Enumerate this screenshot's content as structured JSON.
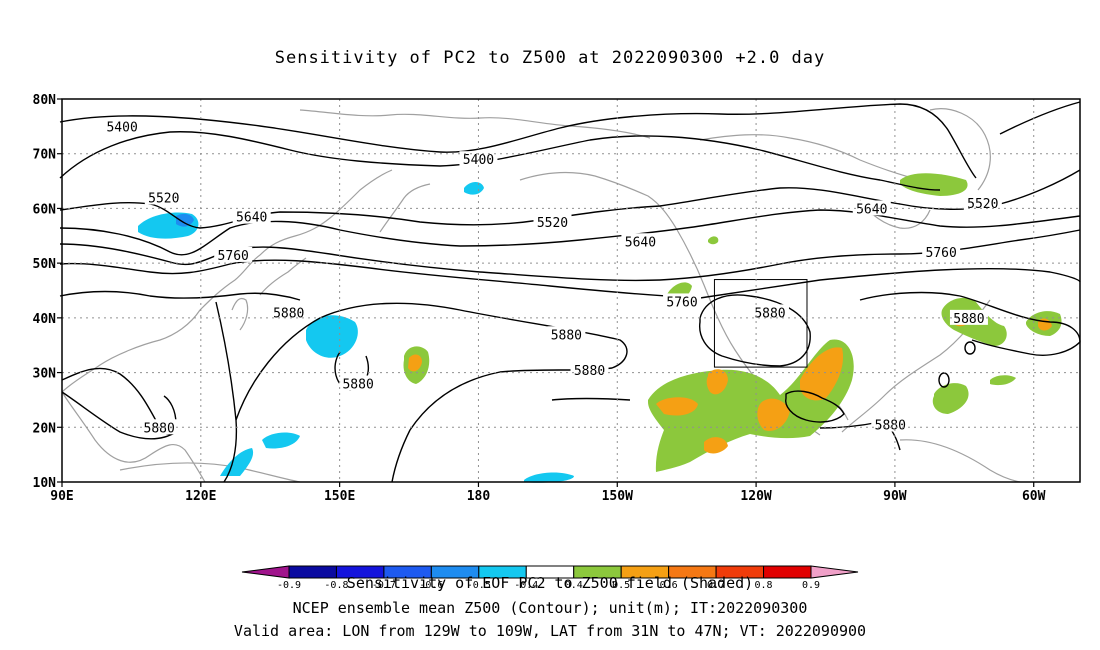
{
  "title": "Sensitivity of PC2 to Z500 at 2022090300 +2.0 day",
  "map": {
    "lat_labels": [
      "80N",
      "70N",
      "60N",
      "50N",
      "40N",
      "30N",
      "20N",
      "10N"
    ],
    "lat_values": [
      80,
      70,
      60,
      50,
      40,
      30,
      20,
      10
    ],
    "lon_labels": [
      "90E",
      "120E",
      "150E",
      "180",
      "150W",
      "120W",
      "90W",
      "60W"
    ],
    "lon_values": [
      90,
      120,
      150,
      180,
      210,
      240,
      270,
      300
    ],
    "extent": {
      "lon_min": 90,
      "lon_max": 310,
      "lat_min": 10,
      "lat_max": 80
    },
    "grid": "dotted",
    "valid_box": {
      "lon_west": 231,
      "lon_east": 251,
      "lat_south": 31,
      "lat_north": 47
    },
    "contour_labels": [
      {
        "text": "5400",
        "lon": 103,
        "lat": 75
      },
      {
        "text": "5400",
        "lon": 180,
        "lat": 69
      },
      {
        "text": "5520",
        "lon": 112,
        "lat": 62
      },
      {
        "text": "5520",
        "lon": 196,
        "lat": 57.5
      },
      {
        "text": "5520",
        "lon": 289,
        "lat": 61
      },
      {
        "text": "5640",
        "lon": 131,
        "lat": 58.5
      },
      {
        "text": "5640",
        "lon": 215,
        "lat": 54
      },
      {
        "text": "5640",
        "lon": 265,
        "lat": 60
      },
      {
        "text": "5760",
        "lon": 127,
        "lat": 51.5
      },
      {
        "text": "5760",
        "lon": 224,
        "lat": 43
      },
      {
        "text": "5760",
        "lon": 280,
        "lat": 52
      },
      {
        "text": "5880",
        "lon": 139,
        "lat": 41
      },
      {
        "text": "5880",
        "lon": 199,
        "lat": 37
      },
      {
        "text": "5880",
        "lon": 154,
        "lat": 28
      },
      {
        "text": "5880",
        "lon": 111,
        "lat": 20
      },
      {
        "text": "5880",
        "lon": 204,
        "lat": 30.5
      },
      {
        "text": "5880",
        "lon": 243,
        "lat": 41
      },
      {
        "text": "5880",
        "lon": 286,
        "lat": 40
      },
      {
        "text": "5880",
        "lon": 269,
        "lat": 20.5
      }
    ]
  },
  "colorbar": {
    "levels": [
      "-0.9",
      "-0.8",
      "-0.7",
      "-0.6",
      "-0.5",
      "-0.4",
      "0.4",
      "0.5",
      "0.6",
      "0.7",
      "0.8",
      "0.9"
    ],
    "colors": [
      "#a0148c",
      "#0a0aa0",
      "#1414dc",
      "#1e5af0",
      "#1e8cf0",
      "#14c8f0",
      "#ffffff",
      "#8cc83c",
      "#f5a014",
      "#f57814",
      "#f03c0a",
      "#e10000",
      "#f0a0c8"
    ]
  },
  "captions": {
    "line1": "Sensitivity of EOF PC2 to Z500 field (Shaded)",
    "line2": "NCEP ensemble mean Z500 (Contour); unit(m); IT:2022090300",
    "line3": "Valid area: LON from 129W to 109W, LAT from 31N to 47N; VT: 2022090900"
  },
  "colors": {
    "positive_shade": "#8cc83c",
    "strong_positive_shade": "#f5a014",
    "negative_shade": "#14c8f0",
    "strong_negative_shade": "#1e8cf0",
    "coastline": "#a0a0a0",
    "contour": "#000000"
  }
}
